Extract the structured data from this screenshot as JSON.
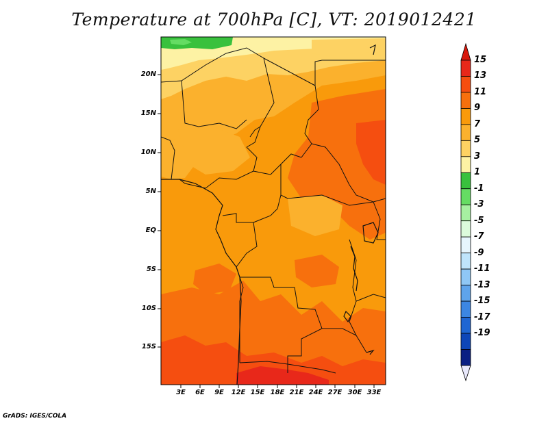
{
  "title": "Temperature at 700hPa [C], VT: 2019012421",
  "credit": "GrADS: IGES/COLA",
  "map": {
    "lat_labels": [
      "20N",
      "15N",
      "10N",
      "5N",
      "EQ",
      "5S",
      "10S",
      "15S"
    ],
    "lon_labels": [
      "3E",
      "6E",
      "9E",
      "12E",
      "15E",
      "18E",
      "21E",
      "24E",
      "27E",
      "30E",
      "33E"
    ]
  },
  "colorbar": {
    "labels": [
      "15",
      "13",
      "11",
      "9",
      "7",
      "5",
      "3",
      "1",
      "-1",
      "-3",
      "-5",
      "-7",
      "-9",
      "-11",
      "-13",
      "-15",
      "-17",
      "-19"
    ],
    "colors": [
      "#e8281a",
      "#f54e10",
      "#f7700d",
      "#f99a0b",
      "#fbb12d",
      "#fdd263",
      "#fdf2a4",
      "#39c13d",
      "#65dc63",
      "#a6f0a1",
      "#dcfbdc",
      "#e6f5fd",
      "#bfe4fb",
      "#8fc7f5",
      "#5fa4eb",
      "#3c86e2",
      "#1f66d3",
      "#0e46b8",
      "#0a1f83"
    ],
    "top_triangle": "#d8180c",
    "bottom_triangle": "#e8e8fb"
  },
  "field_colors": {
    "c15": "#e8281a",
    "c13": "#f54e10",
    "c11": "#f7700d",
    "c9": "#f99a0b",
    "c7": "#fbb12d",
    "c5": "#fdd263",
    "c3": "#fdf2a4",
    "c1": "#39c13d",
    "cm1": "#65dc63"
  }
}
